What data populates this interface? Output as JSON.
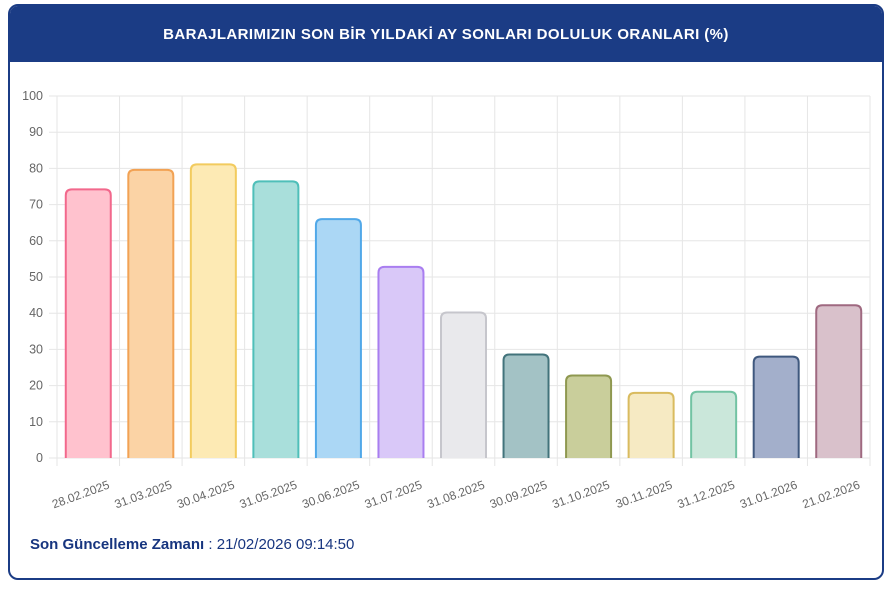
{
  "header": {
    "title": "BARAJLARIMIZIN SON BİR YILDAKİ AY SONLARI DOLULUK ORANLARI (%)"
  },
  "footer": {
    "label": "Son Güncelleme Zamanı",
    "separator": " : ",
    "value": "21/02/2026 09:14:50"
  },
  "chart_data": {
    "type": "bar",
    "title": "BARAJLARIMIZIN SON BİR YILDAKİ AY SONLARI DOLULUK ORANLARI (%)",
    "xlabel": "",
    "ylabel": "",
    "ylim": [
      0,
      100
    ],
    "ytick_step": 10,
    "yticks": [
      0,
      10,
      20,
      30,
      40,
      50,
      60,
      70,
      80,
      90,
      100
    ],
    "grid": true,
    "legend": false,
    "x_label_rotation_deg": -20,
    "categories": [
      "28.02.2025",
      "31.03.2025",
      "30.04.2025",
      "31.05.2025",
      "30.06.2025",
      "31.07.2025",
      "31.08.2025",
      "30.09.2025",
      "31.10.2025",
      "30.11.2025",
      "31.12.2025",
      "31.01.2026",
      "21.02.2026"
    ],
    "values": [
      74.2,
      79.6,
      81.1,
      76.4,
      66.0,
      52.8,
      40.2,
      28.6,
      22.8,
      18.0,
      18.3,
      28.0,
      42.2
    ],
    "bar_colors": [
      {
        "fill": "#ffc2ce",
        "border": "#f2688c"
      },
      {
        "fill": "#fbd3a5",
        "border": "#f2a254"
      },
      {
        "fill": "#fdeab4",
        "border": "#f2cb5e"
      },
      {
        "fill": "#a9dfdb",
        "border": "#4fbfb9"
      },
      {
        "fill": "#abd7f5",
        "border": "#51a8e8"
      },
      {
        "fill": "#d9c8f8",
        "border": "#a97ef0"
      },
      {
        "fill": "#e9e9ec",
        "border": "#c6c6cc"
      },
      {
        "fill": "#a3c2c5",
        "border": "#42737b"
      },
      {
        "fill": "#c9ce9b",
        "border": "#8f9850"
      },
      {
        "fill": "#f6eac3",
        "border": "#d9bb5f"
      },
      {
        "fill": "#cae7da",
        "border": "#72c3a3"
      },
      {
        "fill": "#a3afcb",
        "border": "#3f587e"
      },
      {
        "fill": "#d9c1cb",
        "border": "#9f6980"
      }
    ]
  },
  "colors": {
    "header_bg": "#1b3c85",
    "card_border": "#1b3c85",
    "footer_text": "#17357f",
    "axis_text": "#666666",
    "gridline": "#e6e6e6"
  }
}
